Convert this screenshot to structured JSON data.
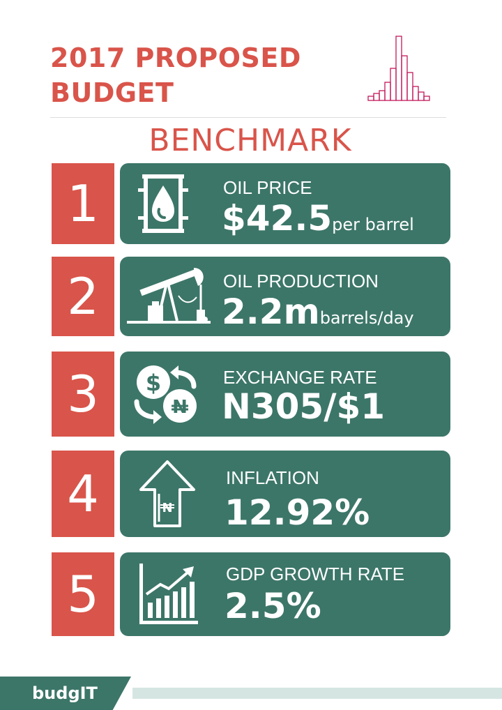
{
  "header": {
    "title_line1": "2017 PROPOSED",
    "title_line2": "BUDGET",
    "subtitle": "BENCHMARK"
  },
  "items": [
    {
      "number": "1",
      "label": "OIL PRICE",
      "value": "$42.5",
      "unit": "per barrel",
      "icon": "oil-barrel-icon"
    },
    {
      "number": "2",
      "label": "OIL PRODUCTION",
      "value": "2.2m",
      "unit": "barrels/day",
      "icon": "oil-pump-jack-icon"
    },
    {
      "number": "3",
      "label": "EXCHANGE RATE",
      "value": "N305/$1",
      "unit": "",
      "icon": "currency-exchange-icon"
    },
    {
      "number": "4",
      "label": "INFLATION",
      "value": "12.92%",
      "unit": "",
      "icon": "naira-up-arrow-icon"
    },
    {
      "number": "5",
      "label": "GDP GROWTH RATE",
      "value": "2.5%",
      "unit": "",
      "icon": "growth-bar-chart-icon"
    }
  ],
  "footer": {
    "brand": "budgIT"
  },
  "colors": {
    "accent": "#d9544a",
    "card": "#3c7668",
    "footer_bar": "#d5e6e2"
  }
}
